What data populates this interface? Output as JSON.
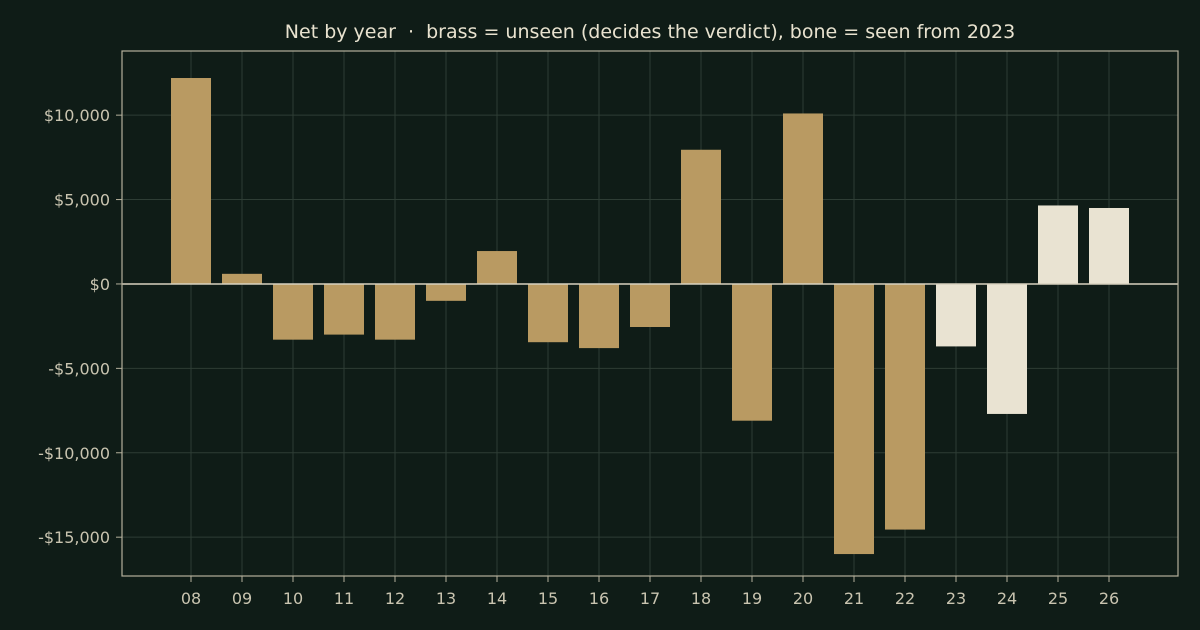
{
  "chart_data": {
    "type": "bar",
    "title": "Net by year  ·  brass = unseen (decides the verdict), bone = seen from 2023",
    "xlabel": "",
    "ylabel": "",
    "categories": [
      "08",
      "09",
      "10",
      "11",
      "12",
      "13",
      "14",
      "15",
      "16",
      "17",
      "18",
      "19",
      "20",
      "21",
      "22",
      "23",
      "24",
      "25",
      "26"
    ],
    "values": [
      12200,
      600,
      -3300,
      -3000,
      -3300,
      -1000,
      1950,
      -3450,
      -3800,
      -2550,
      7950,
      -8100,
      10100,
      -16000,
      -14550,
      -3700,
      -7700,
      4650,
      4500
    ],
    "seen": [
      false,
      false,
      false,
      false,
      false,
      false,
      false,
      false,
      false,
      false,
      false,
      false,
      false,
      false,
      false,
      true,
      true,
      true,
      true
    ],
    "ylim": [
      -17300,
      13800
    ],
    "yticks": [
      10000,
      5000,
      0,
      -5000,
      -10000,
      -15000
    ],
    "ytick_labels": [
      "$10,000",
      "$5,000",
      "$0",
      "-$5,000",
      "-$10,000",
      "-$15,000"
    ],
    "grid": true,
    "legend": "none",
    "colors": {
      "background": "#0f1c17",
      "unseen": "#b99a62",
      "seen": "#e9e3d2",
      "axis": "#b5b09c",
      "grid": "#2e3d35",
      "zero_line": "#d8d2bf"
    }
  }
}
